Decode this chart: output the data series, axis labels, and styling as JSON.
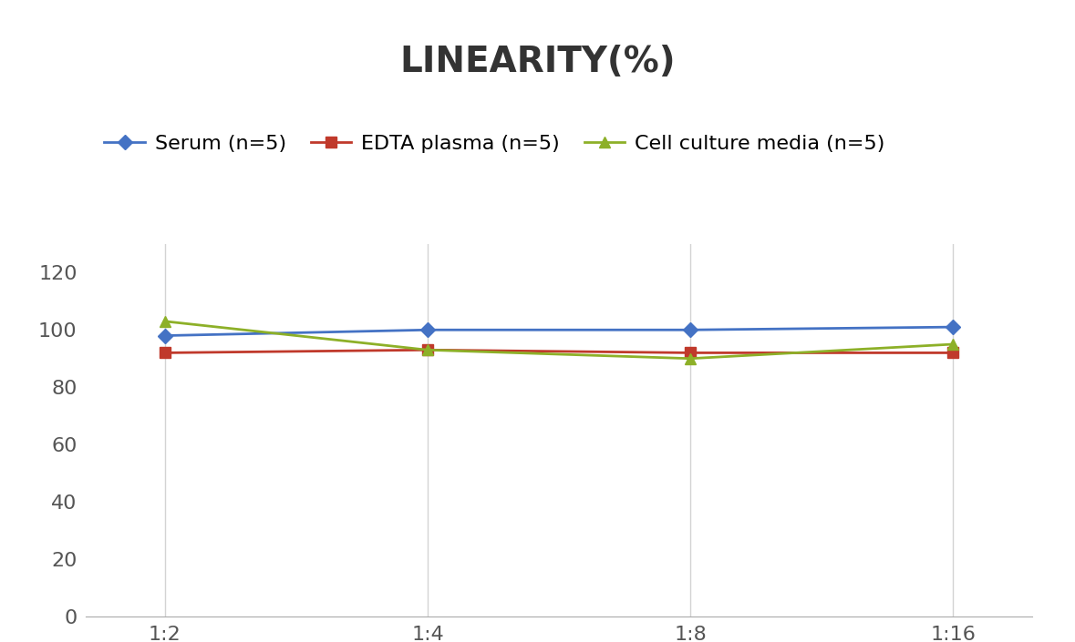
{
  "title": "LINEARITY(%)",
  "x_labels": [
    "1:2",
    "1:4",
    "1:8",
    "1:16"
  ],
  "x_positions": [
    0,
    1,
    2,
    3
  ],
  "series": [
    {
      "name": "Serum (n=5)",
      "values": [
        98,
        100,
        100,
        101
      ],
      "color": "#4472C4",
      "marker": "D",
      "linewidth": 2,
      "markersize": 8
    },
    {
      "name": "EDTA plasma (n=5)",
      "values": [
        92,
        93,
        92,
        92
      ],
      "color": "#C0392B",
      "marker": "s",
      "linewidth": 2,
      "markersize": 8
    },
    {
      "name": "Cell culture media (n=5)",
      "values": [
        103,
        93,
        90,
        95
      ],
      "color": "#8DB028",
      "marker": "^",
      "linewidth": 2,
      "markersize": 8
    }
  ],
  "ylim": [
    0,
    130
  ],
  "yticks": [
    0,
    20,
    40,
    60,
    80,
    100,
    120
  ],
  "background_color": "#FFFFFF",
  "grid_color": "#D3D3D3",
  "title_fontsize": 28,
  "tick_fontsize": 16,
  "legend_fontsize": 16
}
